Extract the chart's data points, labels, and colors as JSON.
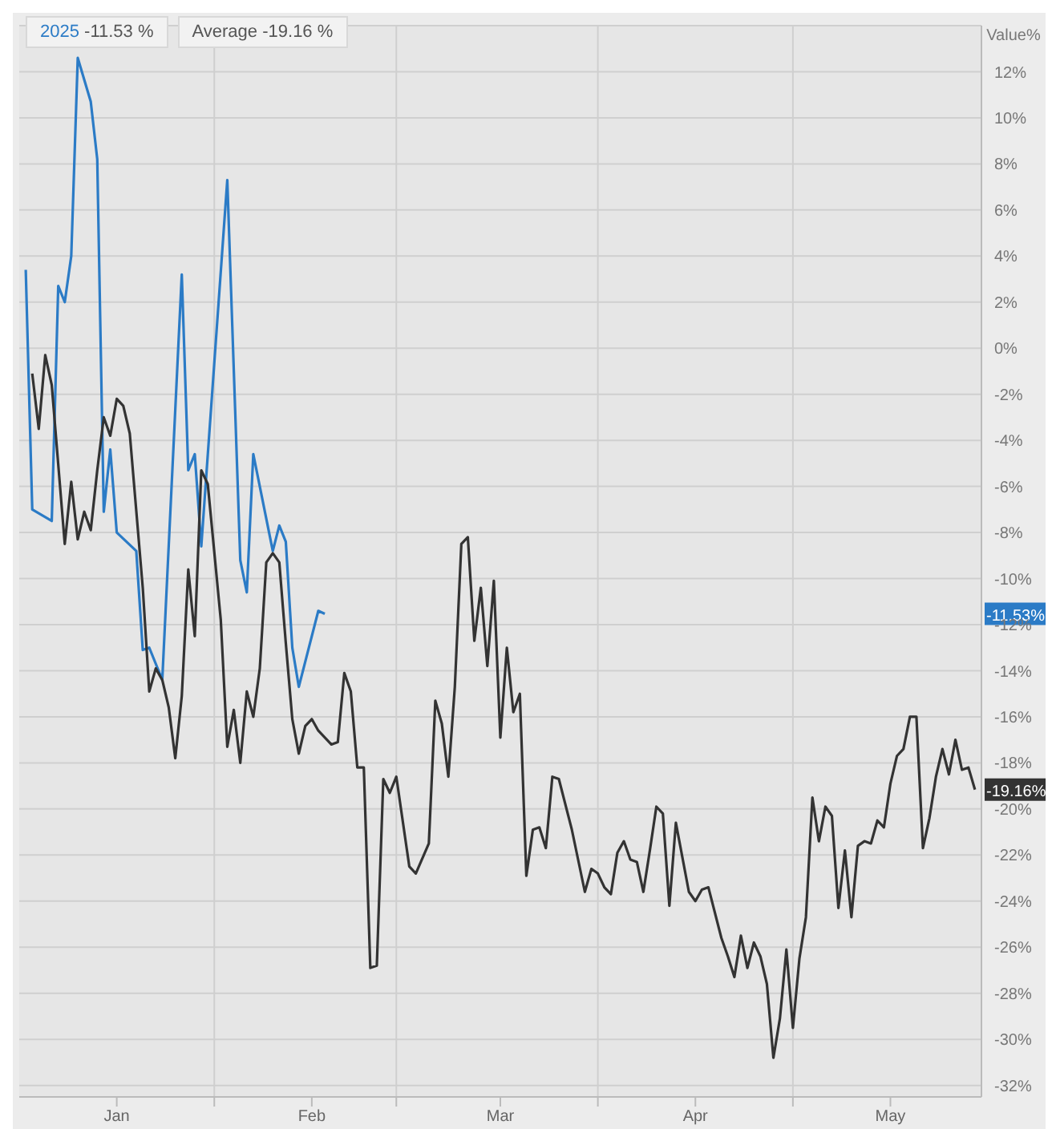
{
  "chart_data": {
    "type": "line",
    "ylabel": "Value%",
    "legend": "top left",
    "grid": true,
    "marker": "none",
    "line_style": "solid",
    "xlim": [
      "--01-02",
      "--05-30"
    ],
    "xticks": [
      {
        "value": "--01-17",
        "label": "Jan"
      },
      {
        "value": "--02-01",
        "label": null
      },
      {
        "value": "--02-16",
        "label": "Feb"
      },
      {
        "value": "--03-01",
        "label": null
      },
      {
        "value": "--03-17",
        "label": "Mar"
      },
      {
        "value": "--04-01",
        "label": null
      },
      {
        "value": "--04-16",
        "label": "Apr"
      },
      {
        "value": "--05-01",
        "label": null
      },
      {
        "value": "--05-16",
        "label": "May"
      }
    ],
    "ylim": [
      -32.5,
      14
    ],
    "yticks": [
      {
        "value": 12,
        "label": "12%"
      },
      {
        "value": 10,
        "label": "10%"
      },
      {
        "value": 8,
        "label": "8%"
      },
      {
        "value": 6,
        "label": "6%"
      },
      {
        "value": 4,
        "label": "4%"
      },
      {
        "value": 2,
        "label": "2%"
      },
      {
        "value": 0,
        "label": "0%"
      },
      {
        "value": -2,
        "label": "-2%"
      },
      {
        "value": -4,
        "label": "-4%"
      },
      {
        "value": -6,
        "label": "-6%"
      },
      {
        "value": -8,
        "label": "-8%"
      },
      {
        "value": -10,
        "label": "-10%"
      },
      {
        "value": -12,
        "label": "-12%"
      },
      {
        "value": -14,
        "label": "-14%"
      },
      {
        "value": -16,
        "label": "-16%"
      },
      {
        "value": -18,
        "label": "-18%"
      },
      {
        "value": -20,
        "label": "-20%"
      },
      {
        "value": -22,
        "label": "-22%"
      },
      {
        "value": -24,
        "label": "-24%"
      },
      {
        "value": -26,
        "label": "-26%"
      },
      {
        "value": -28,
        "label": "-28%"
      },
      {
        "value": -30,
        "label": "-30%"
      },
      {
        "value": -32,
        "label": "-32%"
      }
    ],
    "series": [
      {
        "name": "2025",
        "color": "#2b7bc6",
        "x": [
          "--01-03",
          "--01-04",
          "--01-07",
          "--01-08",
          "--01-09",
          "--01-10",
          "--01-11",
          "--01-13",
          "--01-14",
          "--01-15",
          "--01-16",
          "--01-17",
          "--01-20",
          "--01-21",
          "--01-22",
          "--01-24",
          "--01-27",
          "--01-28",
          "--01-29",
          "--01-30",
          "--02-03",
          "--02-05",
          "--02-06",
          "--02-07",
          "--02-10",
          "--02-11",
          "--02-12",
          "--02-13",
          "--02-14",
          "--02-17",
          "--02-18"
        ],
        "values": [
          3.4,
          -7.0,
          -7.5,
          2.7,
          2.0,
          4.0,
          12.6,
          10.7,
          8.2,
          -7.1,
          -4.4,
          -8.0,
          -8.8,
          -13.1,
          -13.0,
          -14.4,
          3.2,
          -5.3,
          -4.6,
          -8.6,
          7.3,
          -9.2,
          -10.6,
          -4.6,
          -8.8,
          -7.7,
          -8.4,
          -13.0,
          -14.7,
          -11.4,
          -11.53
        ]
      },
      {
        "name": "Average",
        "color": "#333333",
        "x": [
          "--01-04",
          "--01-05",
          "--01-06",
          "--01-07",
          "--01-09",
          "--01-10",
          "--01-11",
          "--01-12",
          "--01-13",
          "--01-14",
          "--01-15",
          "--01-16",
          "--01-17",
          "--01-18",
          "--01-19",
          "--01-21",
          "--01-22",
          "--01-23",
          "--01-24",
          "--01-25",
          "--01-26",
          "--01-27",
          "--01-28",
          "--01-29",
          "--01-30",
          "--01-31",
          "--02-02",
          "--02-03",
          "--02-04",
          "--02-05",
          "--02-06",
          "--02-07",
          "--02-08",
          "--02-09",
          "--02-10",
          "--02-11",
          "--02-12",
          "--02-13",
          "--02-14",
          "--02-15",
          "--02-16",
          "--02-17",
          "--02-19",
          "--02-20",
          "--02-21",
          "--02-22",
          "--02-23",
          "--02-24",
          "--02-25",
          "--02-26",
          "--02-27",
          "--02-28",
          "--03-01",
          "--03-03",
          "--03-04",
          "--03-06",
          "--03-07",
          "--03-08",
          "--03-09",
          "--03-10",
          "--03-11",
          "--03-12",
          "--03-13",
          "--03-14",
          "--03-15",
          "--03-16",
          "--03-17",
          "--03-18",
          "--03-19",
          "--03-20",
          "--03-21",
          "--03-22",
          "--03-23",
          "--03-24",
          "--03-25",
          "--03-26",
          "--03-28",
          "--03-30",
          "--03-31",
          "--04-01",
          "--04-02",
          "--04-03",
          "--04-04",
          "--04-05",
          "--04-06",
          "--04-07",
          "--04-08",
          "--04-09",
          "--04-10",
          "--04-11",
          "--04-12",
          "--04-13",
          "--04-15",
          "--04-16",
          "--04-17",
          "--04-18",
          "--04-20",
          "--04-21",
          "--04-22",
          "--04-23",
          "--04-24",
          "--04-25",
          "--04-26",
          "--04-27",
          "--04-28",
          "--04-29",
          "--04-30",
          "--05-01",
          "--05-02",
          "--05-03",
          "--05-04",
          "--05-05",
          "--05-06",
          "--05-07",
          "--05-08",
          "--05-09",
          "--05-10",
          "--05-11",
          "--05-12",
          "--05-13",
          "--05-14",
          "--05-15",
          "--05-16",
          "--05-17",
          "--05-18",
          "--05-19",
          "--05-20",
          "--05-21",
          "--05-22",
          "--05-23",
          "--05-24",
          "--05-25",
          "--05-26",
          "--05-27",
          "--05-28",
          "--05-29"
        ],
        "values": [
          -1.1,
          -3.5,
          -0.3,
          -1.6,
          -8.5,
          -5.8,
          -8.3,
          -7.1,
          -7.9,
          -5.3,
          -3.0,
          -3.8,
          -2.2,
          -2.5,
          -3.7,
          -10.4,
          -14.9,
          -13.9,
          -14.4,
          -15.6,
          -17.8,
          -15.1,
          -9.6,
          -12.5,
          -5.3,
          -5.9,
          -11.8,
          -17.3,
          -15.7,
          -18.0,
          -14.9,
          -16.0,
          -13.9,
          -9.3,
          -8.9,
          -9.3,
          -12.8,
          -16.1,
          -17.6,
          -16.4,
          -16.1,
          -16.6,
          -17.2,
          -17.1,
          -14.1,
          -14.9,
          -18.2,
          -18.2,
          -26.9,
          -26.8,
          -18.7,
          -19.3,
          -18.6,
          -22.5,
          -22.8,
          -21.5,
          -15.3,
          -16.3,
          -18.6,
          -14.7,
          -8.5,
          -8.2,
          -12.7,
          -10.4,
          -13.8,
          -10.1,
          -16.9,
          -13.0,
          -15.8,
          -15.0,
          -22.9,
          -20.9,
          -20.8,
          -21.7,
          -18.6,
          -18.7,
          -20.9,
          -23.6,
          -22.6,
          -22.8,
          -23.4,
          -23.7,
          -21.9,
          -21.4,
          -22.2,
          -22.3,
          -23.6,
          -21.8,
          -19.9,
          -20.2,
          -24.2,
          -20.6,
          -23.6,
          -24.0,
          -23.5,
          -23.4,
          -25.6,
          -26.4,
          -27.3,
          -25.5,
          -26.9,
          -25.8,
          -26.4,
          -27.6,
          -30.8,
          -29.1,
          -26.1,
          -29.5,
          -26.5,
          -24.7,
          -19.5,
          -21.4,
          -19.9,
          -20.3,
          -24.3,
          -21.8,
          -24.7,
          -21.6,
          -21.4,
          -21.5,
          -20.5,
          -20.8,
          -18.9,
          -17.7,
          -17.4,
          -16.0,
          -16.0,
          -21.7,
          -20.4,
          -18.6,
          -17.4,
          -18.5,
          -17.0,
          -18.3,
          -18.2,
          -19.16
        ]
      }
    ],
    "annotations": [
      "-11.53 %",
      "-19.16 %",
      "-11.53%",
      "-19.16%"
    ]
  }
}
